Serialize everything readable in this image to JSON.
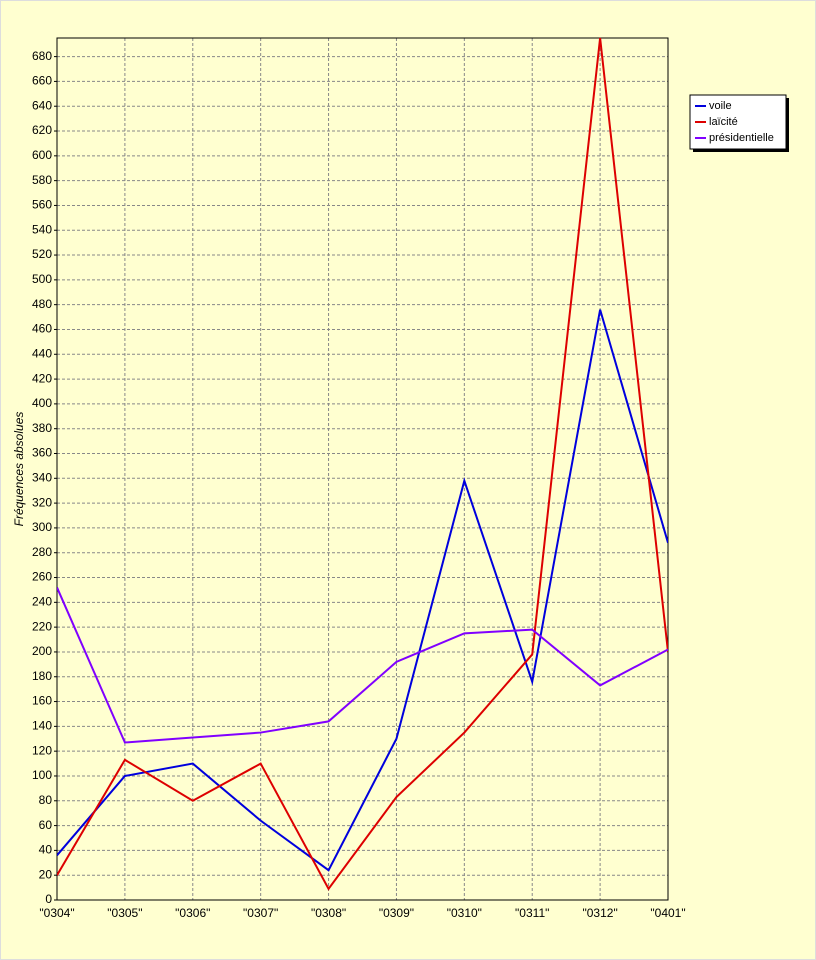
{
  "chart_data": {
    "type": "line",
    "y_label": "Fréquences absolues",
    "categories": [
      "\"0304\"",
      "\"0305\"",
      "\"0306\"",
      "\"0307\"",
      "\"0308\"",
      "\"0309\"",
      "\"0310\"",
      "\"0311\"",
      "\"0312\"",
      "\"0401\""
    ],
    "series": [
      {
        "name": "voile",
        "color": "#0000dd",
        "values": [
          36,
          100,
          110,
          64,
          24,
          130,
          338,
          176,
          476,
          288
        ]
      },
      {
        "name": "laïcité",
        "color": "#dd0000",
        "values": [
          20,
          113,
          80,
          110,
          9,
          83,
          135,
          198,
          695,
          200
        ]
      },
      {
        "name": "présidentielle",
        "color": "#8000ff",
        "values": [
          252,
          127,
          131,
          135,
          144,
          192,
          215,
          218,
          173,
          202
        ]
      }
    ],
    "ylim": [
      0,
      695
    ],
    "yticks": [
      0,
      20,
      40,
      60,
      80,
      100,
      120,
      140,
      160,
      180,
      200,
      220,
      240,
      260,
      280,
      300,
      320,
      340,
      360,
      380,
      400,
      420,
      440,
      460,
      480,
      500,
      520,
      540,
      560,
      580,
      600,
      620,
      640,
      660,
      680
    ],
    "grid": true
  }
}
